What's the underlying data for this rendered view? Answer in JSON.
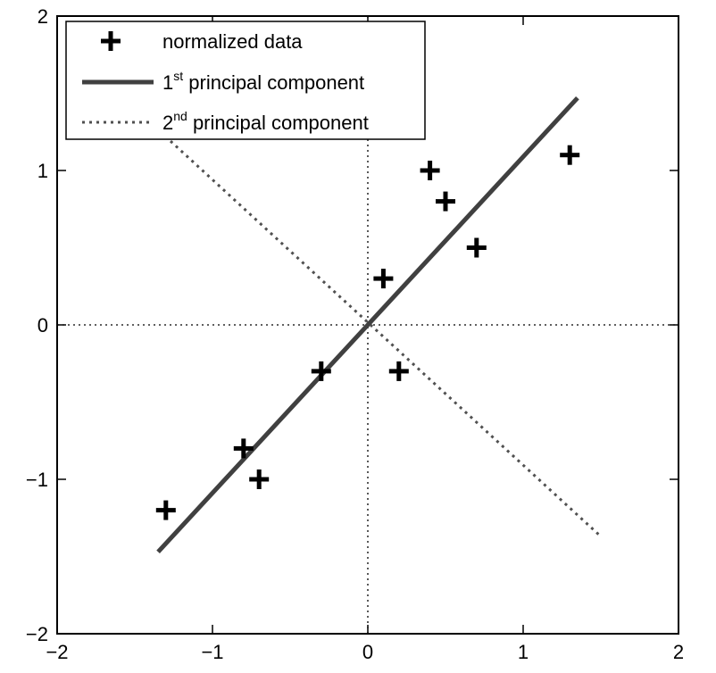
{
  "chart_data": {
    "type": "scatter",
    "title": "",
    "xlabel": "",
    "ylabel": "",
    "xlim": [
      -2,
      2
    ],
    "ylim": [
      -2,
      2
    ],
    "grid": false,
    "legend_placement": "top-left",
    "x_ticks": [
      {
        "value": -2,
        "label": "−2"
      },
      {
        "value": -1,
        "label": "−1"
      },
      {
        "value": 0,
        "label": "0"
      },
      {
        "value": 1,
        "label": "1"
      },
      {
        "value": 2,
        "label": "2"
      }
    ],
    "y_ticks": [
      {
        "value": -2,
        "label": "−2"
      },
      {
        "value": -1,
        "label": "−1"
      },
      {
        "value": 0,
        "label": "0"
      },
      {
        "value": 1,
        "label": "1"
      },
      {
        "value": 2,
        "label": "2"
      }
    ],
    "reference_lines": {
      "x": 0,
      "y": 0,
      "style": "dotted"
    },
    "series": [
      {
        "kind": "points",
        "marker": "plus",
        "color": "#000000",
        "points": [
          {
            "x": -1.3,
            "y": -1.2
          },
          {
            "x": -0.8,
            "y": -0.8
          },
          {
            "x": -0.7,
            "y": -1.0
          },
          {
            "x": -0.3,
            "y": -0.3
          },
          {
            "x": 0.1,
            "y": 0.3
          },
          {
            "x": 0.2,
            "y": -0.3
          },
          {
            "x": 0.4,
            "y": 1.0
          },
          {
            "x": 0.5,
            "y": 0.8
          },
          {
            "x": 0.7,
            "y": 0.5
          },
          {
            "x": 1.3,
            "y": 1.1
          }
        ]
      },
      {
        "kind": "line",
        "style": "solid",
        "color": "#404040",
        "points": [
          {
            "x": -1.35,
            "y": -1.47
          },
          {
            "x": 1.35,
            "y": 1.47
          }
        ]
      },
      {
        "kind": "line",
        "style": "dotted",
        "color": "#505050",
        "points": [
          {
            "x": -1.27,
            "y": 1.19
          },
          {
            "x": 1.5,
            "y": -1.37
          }
        ]
      }
    ],
    "legend": [
      {
        "symbol": "plus",
        "text": "normalized data",
        "sup": ""
      },
      {
        "symbol": "solid",
        "prefix": "1",
        "sup": "st",
        "text": " principal component"
      },
      {
        "symbol": "dotted",
        "prefix": "2",
        "sup": "nd",
        "text": " principal component"
      }
    ]
  }
}
